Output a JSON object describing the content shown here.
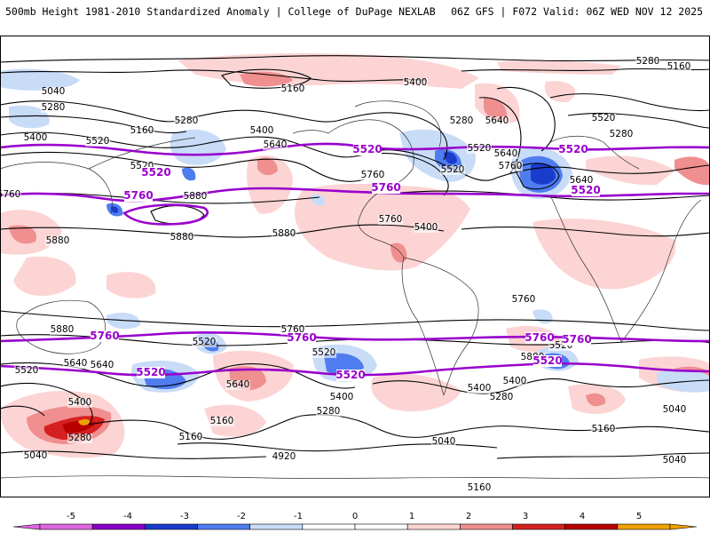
{
  "header": {
    "left": "500mb Height 1981-2010 Standardized Anomaly | College of DuPage NEXLAB",
    "right": "06Z GFS | F072 Valid: 06Z WED NOV 12 2025"
  },
  "colors": {
    "neg5": "#e066e0",
    "neg4": "#8a00c8",
    "neg3": "#1a3ccc",
    "neg2": "#4f7df0",
    "neg1": "#c8dcf8",
    "zero": "#ffffff",
    "pos1": "#fcd4d4",
    "pos2": "#f08f8f",
    "pos3": "#d62020",
    "pos4": "#b80000",
    "pos5": "#f0a000",
    "contour": "#000000",
    "highlight": "#9900cc",
    "map_frame": "#000000"
  },
  "colorbar": {
    "ticks": [
      "-5",
      "-4",
      "-3",
      "-2",
      "-1",
      "0",
      "1",
      "2",
      "3",
      "4",
      "5"
    ]
  },
  "contour_labels": [
    {
      "text": "5280"
    },
    {
      "text": "5160"
    },
    {
      "text": "5040"
    },
    {
      "text": "5160"
    },
    {
      "text": "5400"
    },
    {
      "text": "5280"
    },
    {
      "text": "5280"
    },
    {
      "text": "5160"
    },
    {
      "text": "5400"
    },
    {
      "text": "5280"
    },
    {
      "text": "5640"
    },
    {
      "text": "5520"
    },
    {
      "text": "5400"
    },
    {
      "text": "5640"
    },
    {
      "text": "5520"
    },
    {
      "text": "5640"
    },
    {
      "text": "5280"
    },
    {
      "text": "5640"
    },
    {
      "text": "5520"
    },
    {
      "text": "5760"
    },
    {
      "text": "5760"
    },
    {
      "text": "5880"
    },
    {
      "text": "5880"
    },
    {
      "text": "5880"
    },
    {
      "text": "5880"
    },
    {
      "text": "5760"
    },
    {
      "text": "5400"
    },
    {
      "text": "5520"
    },
    {
      "text": "5760"
    },
    {
      "text": "5880"
    },
    {
      "text": "5880"
    },
    {
      "text": "5760"
    },
    {
      "text": "5520"
    },
    {
      "text": "5640"
    },
    {
      "text": "5520"
    },
    {
      "text": "5640"
    },
    {
      "text": "5520"
    },
    {
      "text": "5760"
    },
    {
      "text": "5520"
    },
    {
      "text": "5640"
    },
    {
      "text": "5400"
    },
    {
      "text": "5160"
    },
    {
      "text": "5280"
    },
    {
      "text": "5400"
    },
    {
      "text": "5400"
    },
    {
      "text": "5280"
    },
    {
      "text": "5520"
    },
    {
      "text": "5400"
    },
    {
      "text": "5280"
    },
    {
      "text": "5160"
    },
    {
      "text": "5040"
    },
    {
      "text": "4920"
    },
    {
      "text": "5040"
    },
    {
      "text": "5160"
    },
    {
      "text": "5040"
    },
    {
      "text": "5160"
    },
    {
      "text": "5040"
    }
  ],
  "highlight_labels": [
    {
      "text": "5520"
    },
    {
      "text": "5520"
    },
    {
      "text": "5760"
    },
    {
      "text": "5520"
    },
    {
      "text": "5760"
    },
    {
      "text": "5520"
    },
    {
      "text": "5760"
    },
    {
      "text": "5760"
    },
    {
      "text": "5760"
    },
    {
      "text": "5760"
    },
    {
      "text": "5520"
    },
    {
      "text": "5520"
    },
    {
      "text": "5520"
    }
  ]
}
